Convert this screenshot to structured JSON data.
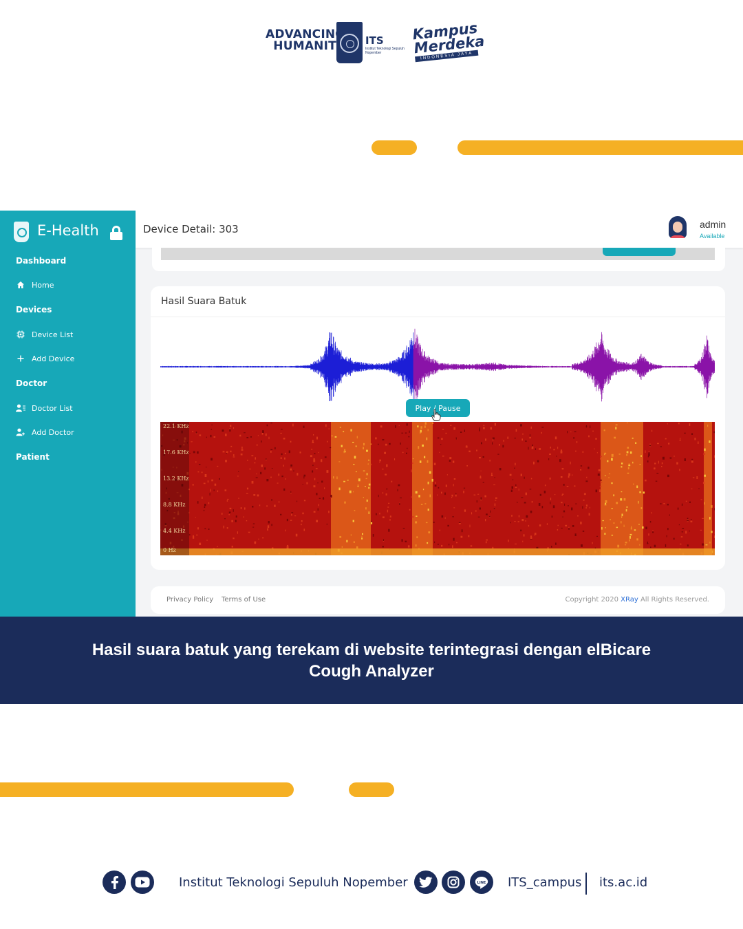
{
  "header_logos": {
    "tagline": "ADVANCING HUMANITY",
    "its_name": "ITS",
    "its_subtitle": "Institut Teknologi Sepuluh Nopember",
    "kampus": "Kampus Merdeka",
    "kampus_sub": "INDONESIA JAYA"
  },
  "colors": {
    "accent_yellow": "#f5b024",
    "navy": "#1b2c5a",
    "teal": "#17a8b8"
  },
  "app": {
    "brand": "E-Health",
    "sidebar": {
      "sections": [
        {
          "label": "Dashboard",
          "items": [
            {
              "label": "Home",
              "icon": "home-icon"
            }
          ]
        },
        {
          "label": "Devices",
          "items": [
            {
              "label": "Device List",
              "icon": "chip-icon"
            },
            {
              "label": "Add Device",
              "icon": "plus-icon"
            }
          ]
        },
        {
          "label": "Doctor",
          "items": [
            {
              "label": "Doctor List",
              "icon": "user-list-icon"
            },
            {
              "label": "Add Doctor",
              "icon": "user-add-icon"
            }
          ]
        },
        {
          "label": "Patient",
          "items": []
        }
      ]
    },
    "page_title": "Device Detail: 303",
    "user": {
      "name": "admin",
      "status": "Available"
    },
    "card": {
      "title": "Hasil Suara Batuk",
      "play_button": "Play / Pause",
      "spectrogram_freq_labels": [
        "22.1 KHz",
        "17.6 KHz",
        "13.2 KHz",
        "8.8  KHz",
        "4.4  KHz",
        "0    Hz"
      ]
    },
    "footer": {
      "privacy": "Privacy Policy",
      "terms": "Terms of Use",
      "copyright_prefix": "Copyright 2020",
      "copyright_brand": "XRay",
      "copyright_suffix": "All Rights Reserved."
    }
  },
  "caption": "Hasil suara batuk yang terekam di website terintegrasi dengan elBicare Cough Analyzer",
  "bottom": {
    "institution": "Institut Teknologi Sepuluh Nopember",
    "handle": "ITS_campus",
    "website": "its.ac.id",
    "icons": [
      "facebook-icon",
      "youtube-icon",
      "twitter-icon",
      "instagram-icon",
      "line-icon"
    ]
  }
}
